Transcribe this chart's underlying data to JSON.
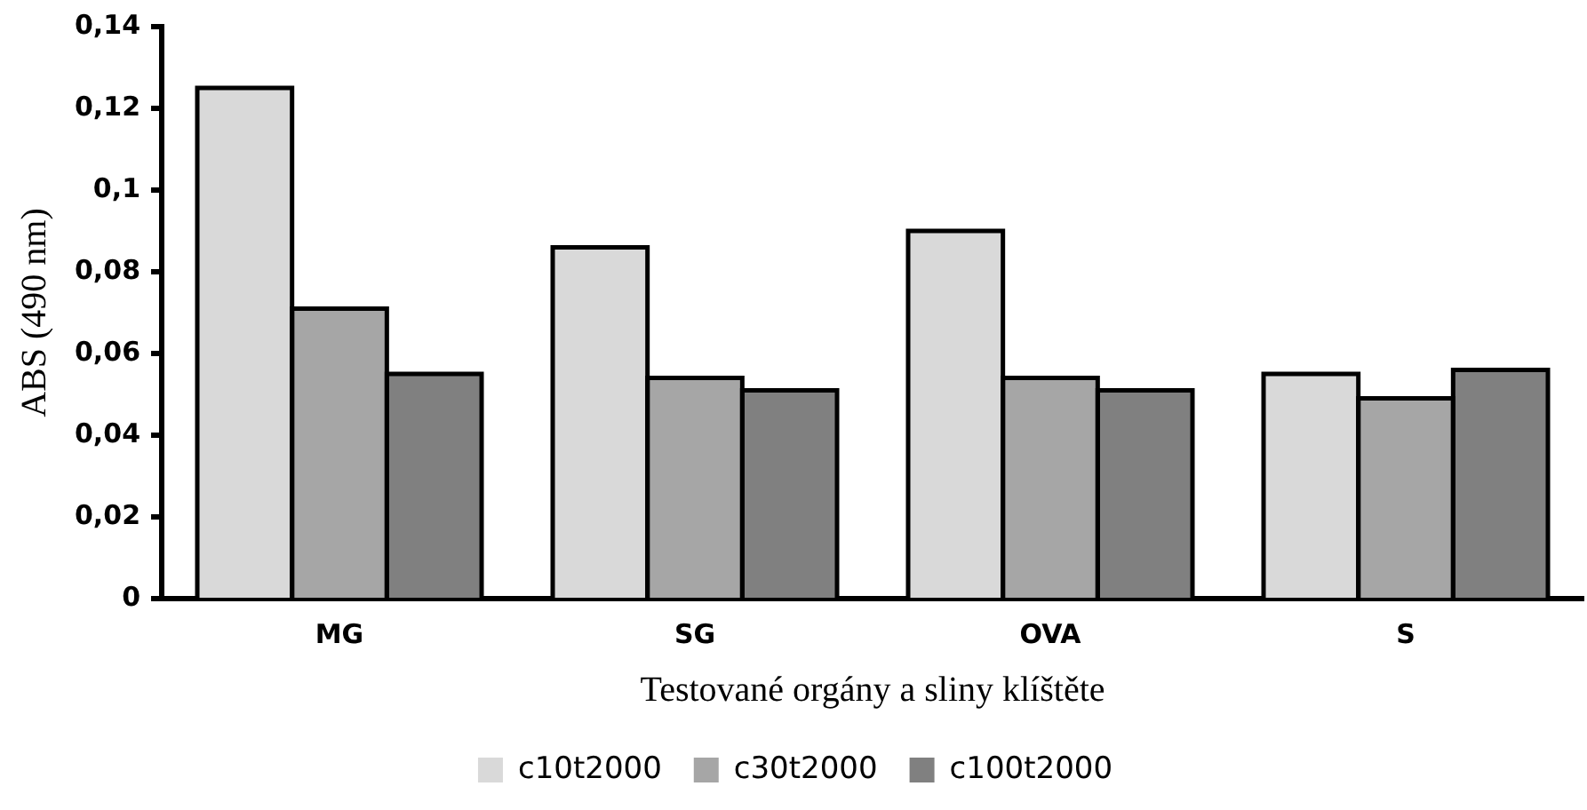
{
  "chart_data": {
    "type": "bar",
    "xlabel": "Testované orgány a sliny klíštěte",
    "ylabel": "ABS (490 nm)",
    "categories": [
      "MG",
      "SG",
      "OVA",
      "S"
    ],
    "series": [
      {
        "name": "c10t2000",
        "color": "#d9d9d9",
        "values": [
          0.125,
          0.086,
          0.09,
          0.055
        ]
      },
      {
        "name": "c30t2000",
        "color": "#a6a6a6",
        "values": [
          0.071,
          0.054,
          0.054,
          0.049
        ]
      },
      {
        "name": "c100t2000",
        "color": "#808080",
        "values": [
          0.055,
          0.051,
          0.051,
          0.056
        ]
      }
    ],
    "ylim": [
      0,
      0.14
    ],
    "yticks": [
      {
        "value": 0,
        "label": "0"
      },
      {
        "value": 0.02,
        "label": "0,02"
      },
      {
        "value": 0.04,
        "label": "0,04"
      },
      {
        "value": 0.06,
        "label": "0,06"
      },
      {
        "value": 0.08,
        "label": "0,08"
      },
      {
        "value": 0.1,
        "label": "0,1"
      },
      {
        "value": 0.12,
        "label": "0,12"
      },
      {
        "value": 0.14,
        "label": "0,14"
      }
    ],
    "grid": false,
    "legend": "bottom"
  }
}
